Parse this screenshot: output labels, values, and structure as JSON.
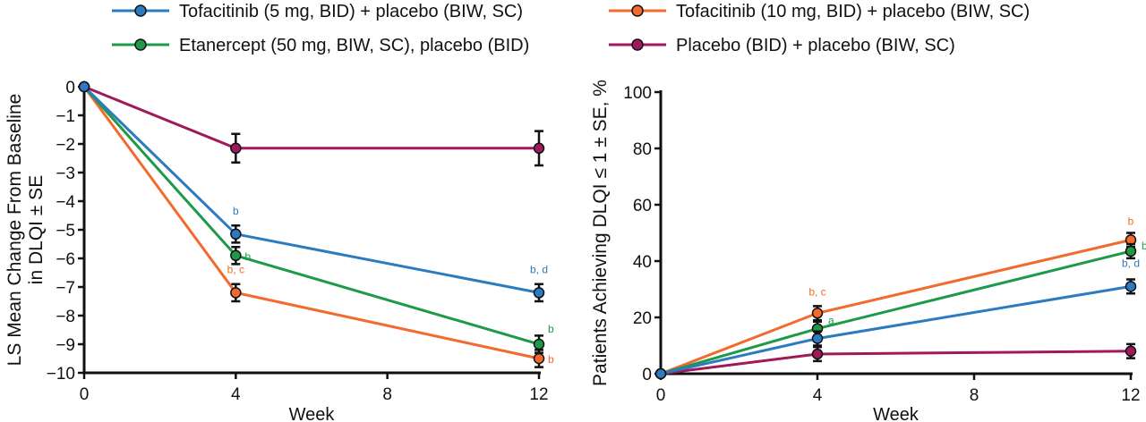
{
  "legend": [
    {
      "name": "Tofacitinib (5 mg, BID) + placebo (BIW, SC)",
      "color": "#2a7bc0"
    },
    {
      "name": "Tofacitinib (10 mg, BID) + placebo (BIW, SC)",
      "color": "#f26a2e"
    },
    {
      "name": "Etanercept (50 mg, BIW, SC), placebo (BID)",
      "color": "#1d9a48"
    },
    {
      "name": "Placebo (BID) + placebo (BIW, SC)",
      "color": "#a0195c"
    }
  ],
  "chart_data": [
    {
      "type": "line",
      "xlabel": "Week",
      "ylabel": [
        "LS Mean Change From Baseline",
        "in DLQI ± SE"
      ],
      "x": [
        0,
        4,
        12
      ],
      "xticks": [
        0,
        4,
        8,
        12
      ],
      "yticks": [
        0,
        -1,
        -2,
        -3,
        -4,
        -5,
        -6,
        -7,
        -8,
        -9,
        -10
      ],
      "xlim": [
        0,
        12
      ],
      "ylim": [
        -10,
        0
      ],
      "grid": false,
      "series": [
        {
          "name": "Tofacitinib (5 mg, BID) + placebo (BIW, SC)",
          "values": [
            0,
            -5.15,
            -7.2
          ],
          "se": [
            0,
            0.3,
            0.3
          ],
          "annotations": [
            "",
            "b",
            "b, d"
          ]
        },
        {
          "name": "Tofacitinib (10 mg, BID) + placebo (BIW, SC)",
          "values": [
            0,
            -7.2,
            -9.5
          ],
          "se": [
            0,
            0.3,
            0.3
          ],
          "annotations": [
            "",
            "b, c",
            "b"
          ]
        },
        {
          "name": "Etanercept (50 mg, BIW, SC), placebo (BID)",
          "values": [
            0,
            -5.9,
            -9.0
          ],
          "se": [
            0,
            0.3,
            0.3
          ],
          "annotations": [
            "",
            "b",
            "b"
          ]
        },
        {
          "name": "Placebo (BID) + placebo (BIW, SC)",
          "values": [
            0,
            -2.15,
            -2.15
          ],
          "se": [
            0,
            0.5,
            0.6
          ],
          "annotations": [
            "",
            "",
            ""
          ]
        }
      ]
    },
    {
      "type": "line",
      "xlabel": "Week",
      "ylabel": [
        "Patients Achieving DLQI ≤ 1 ± SE, %"
      ],
      "x": [
        0,
        4,
        12
      ],
      "xticks": [
        0,
        4,
        8,
        12
      ],
      "yticks": [
        0,
        20,
        40,
        60,
        80,
        100
      ],
      "xlim": [
        0,
        12
      ],
      "ylim": [
        0,
        100
      ],
      "grid": false,
      "series": [
        {
          "name": "Tofacitinib (5 mg, BID) + placebo (BIW, SC)",
          "values": [
            0,
            12.5,
            31
          ],
          "se": [
            0,
            2.5,
            2.5
          ],
          "annotations": [
            "",
            "",
            "b, d"
          ]
        },
        {
          "name": "Tofacitinib (10 mg, BID) + placebo (BIW, SC)",
          "values": [
            0,
            21.5,
            47.5
          ],
          "se": [
            0,
            2.5,
            2.5
          ],
          "annotations": [
            "",
            "b, c",
            "b"
          ]
        },
        {
          "name": "Etanercept (50 mg, BIW, SC), placebo (BID)",
          "values": [
            0,
            16,
            43.5
          ],
          "se": [
            0,
            2.5,
            2.5
          ],
          "annotations": [
            "",
            "a",
            "b"
          ]
        },
        {
          "name": "Placebo (BID) + placebo (BIW, SC)",
          "values": [
            0,
            7,
            8
          ],
          "se": [
            0,
            2.5,
            2.5
          ],
          "annotations": [
            "",
            "",
            ""
          ]
        }
      ]
    }
  ]
}
